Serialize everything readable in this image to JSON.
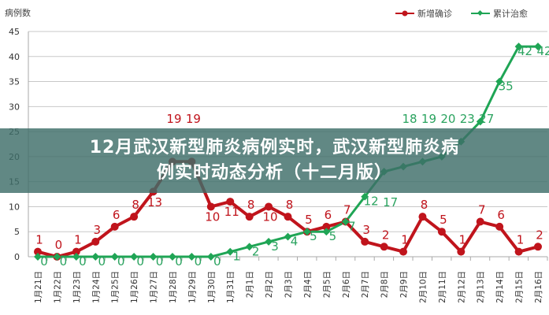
{
  "banner": {
    "line1": "12月武汉新型肺炎病例实时，武汉新型肺炎病",
    "line2": "例实时动态分析（十二月版）"
  },
  "chart_data": {
    "type": "line",
    "ylabel": "病例数",
    "ylim": [
      0,
      45
    ],
    "yticks": [
      0,
      5,
      10,
      15,
      20,
      25,
      30,
      35,
      40,
      45
    ],
    "grid": true,
    "legend_position": "top-right",
    "categories": [
      "1月21日",
      "1月22日",
      "1月23日",
      "1月24日",
      "1月25日",
      "1月26日",
      "1月27日",
      "1月28日",
      "1月29日",
      "1月30日",
      "1月31日",
      "2月1日",
      "2月2日",
      "2月3日",
      "2月4日",
      "2月5日",
      "2月6日",
      "2月7日",
      "2月8日",
      "2月9日",
      "2月10日",
      "2月11日",
      "2月12日",
      "2月13日",
      "2月14日",
      "2月15日",
      "2月16日"
    ],
    "series": [
      {
        "name": "新增确诊",
        "color": "#c0141c",
        "marker": "circle",
        "values": [
          1,
          0,
          1,
          3,
          6,
          8,
          13,
          19,
          19,
          10,
          11,
          8,
          10,
          8,
          5,
          6,
          7,
          3,
          2,
          1,
          8,
          5,
          1,
          7,
          6,
          1,
          2
        ]
      },
      {
        "name": "累计治愈",
        "color": "#1fa555",
        "marker": "diamond",
        "values": [
          0,
          0,
          0,
          0,
          0,
          0,
          0,
          0,
          0,
          0,
          1,
          2,
          3,
          4,
          5,
          5,
          7,
          12,
          17,
          18,
          19,
          20,
          23,
          27,
          35,
          42,
          42
        ]
      }
    ]
  }
}
